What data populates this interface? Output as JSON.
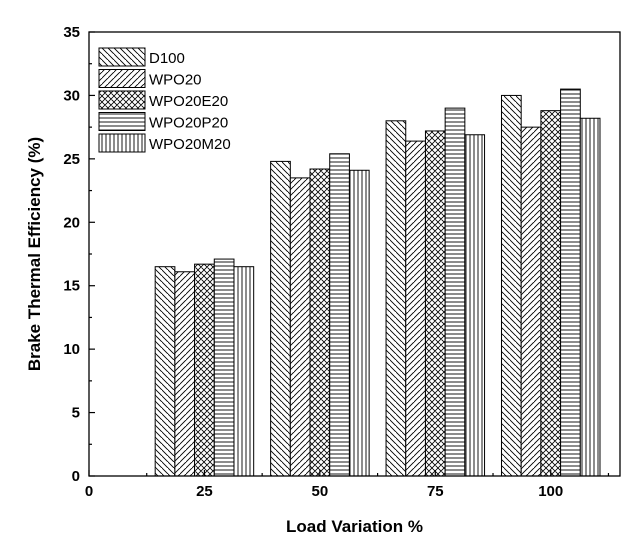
{
  "chart_data": {
    "type": "bar",
    "title": "",
    "xlabel": "Load Variation %",
    "ylabel": "Brake Thermal Efficiency (%)",
    "x": [
      25,
      50,
      75,
      100
    ],
    "xlim": [
      0,
      115
    ],
    "ylim": [
      0,
      35
    ],
    "xticks": [
      "0",
      "25",
      "50",
      "75",
      "100"
    ],
    "yticks": [
      "0",
      "5",
      "10",
      "15",
      "20",
      "25",
      "30",
      "35"
    ],
    "grid": false,
    "legend_position": "top-left",
    "series": [
      {
        "name": "D100",
        "pattern": "diag-down",
        "values": [
          16.5,
          24.8,
          28.0,
          30.0
        ]
      },
      {
        "name": "WPO20",
        "pattern": "diag-up",
        "values": [
          16.1,
          23.5,
          26.4,
          27.5
        ]
      },
      {
        "name": "WPO20E20",
        "pattern": "cross",
        "values": [
          16.7,
          24.2,
          27.2,
          28.8
        ]
      },
      {
        "name": "WPO20P20",
        "pattern": "horizontal",
        "values": [
          17.1,
          25.4,
          29.0,
          30.5
        ]
      },
      {
        "name": "WPO20M20",
        "pattern": "vertical",
        "values": [
          16.5,
          24.1,
          26.9,
          28.2
        ]
      }
    ]
  }
}
